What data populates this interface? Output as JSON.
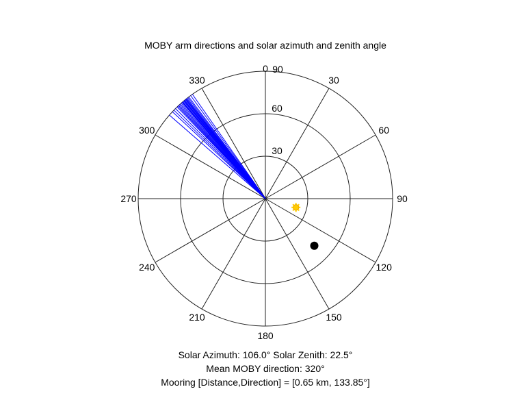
{
  "chart_data": {
    "type": "polar",
    "title": "MOBY arm directions and solar azimuth and zenith angle",
    "orientation": "clockwise from top (0 at top)",
    "angle_ticks": [
      "0",
      "30",
      "60",
      "90",
      "120",
      "150",
      "180",
      "210",
      "240",
      "270",
      "300",
      "330"
    ],
    "radial_ticks": [
      "30",
      "60",
      "90"
    ],
    "radial_range": [
      0,
      90
    ],
    "series": [
      {
        "kind": "radial-lines",
        "color": "#0000ff",
        "directions_deg": [
          311,
          313,
          314,
          315,
          316,
          316.5,
          317,
          317.5,
          318,
          318.5,
          319,
          319.3,
          319.6,
          320,
          320.3,
          320.6,
          321,
          321.3,
          321.6,
          322,
          322.5,
          323,
          324,
          325
        ]
      },
      {
        "kind": "sun-marker",
        "color": "#ffcc00",
        "azimuth_deg": 106.0,
        "zenith_deg": 22.5
      },
      {
        "kind": "point",
        "color": "#000000",
        "direction_deg": 133.85,
        "radius": 48
      }
    ],
    "captions": [
      "Solar Azimuth: 106.0°    Solar Zenith: 22.5°",
      "Mean MOBY direction: 320°",
      "Mooring [Distance,Direction] = [0.65 km, 133.85°]"
    ],
    "grid": true
  }
}
